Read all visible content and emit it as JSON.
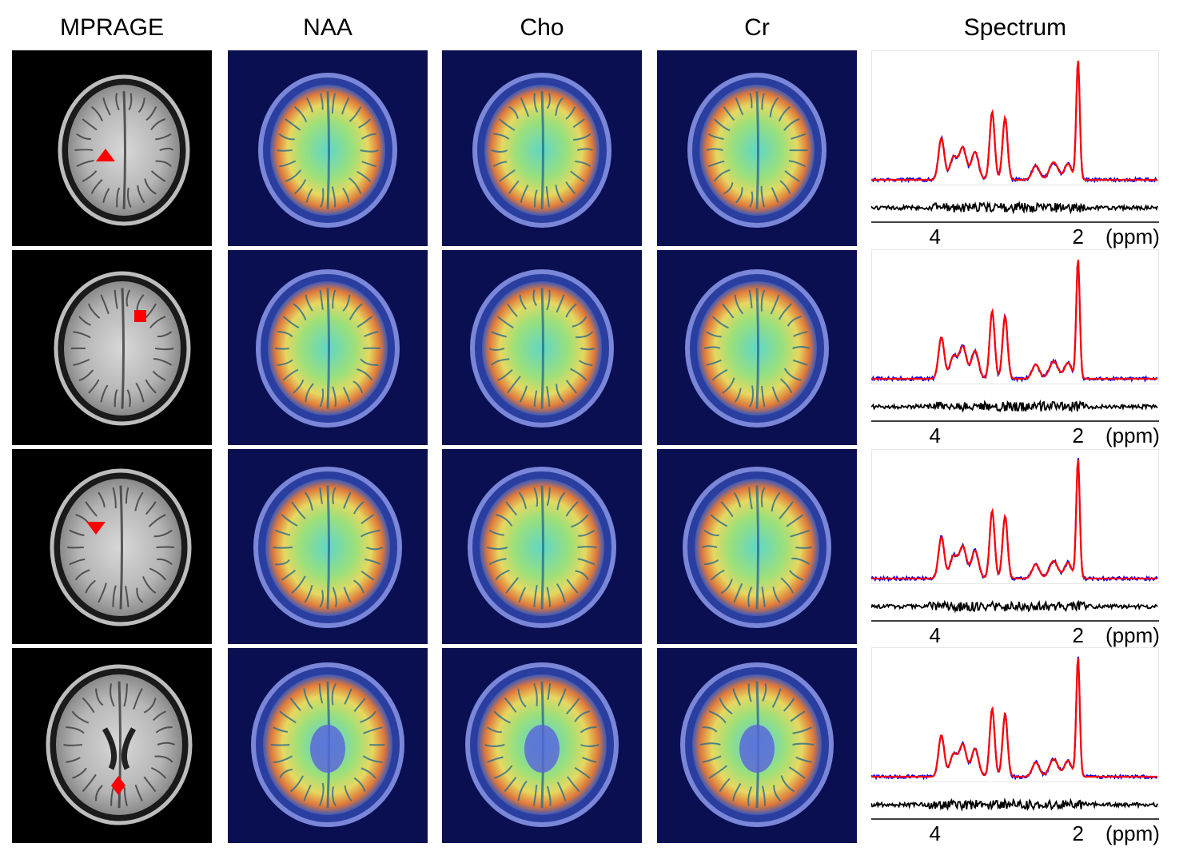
{
  "columns": [
    "MPRAGE",
    "NAA",
    "Cho",
    "Cr",
    "Spectrum"
  ],
  "rows": [
    {
      "marker": "triangle-up",
      "marker_color": "#ff0000"
    },
    {
      "marker": "square",
      "marker_color": "#ff0000"
    },
    {
      "marker": "triangle-down",
      "marker_color": "#ff0000"
    },
    {
      "marker": "diamond",
      "marker_color": "#ff0000"
    }
  ],
  "colors": {
    "fit": "#ff0000",
    "measured": "#0000ff",
    "residual": "#000000",
    "map_background": "#0a0f52"
  },
  "chart_data": [
    {
      "type": "line",
      "title": "",
      "xlabel": "(ppm)",
      "x_ticks": [
        "4",
        "2"
      ],
      "xlim": [
        4.9,
        0.9
      ],
      "series": [
        {
          "name": "measured",
          "color": "#0000ff"
        },
        {
          "name": "fit",
          "color": "#ff0000"
        },
        {
          "name": "residual",
          "color": "#000000"
        }
      ]
    },
    {
      "type": "line",
      "title": "",
      "xlabel": "(ppm)",
      "x_ticks": [
        "4",
        "2"
      ],
      "xlim": [
        4.9,
        0.9
      ],
      "series": [
        {
          "name": "measured",
          "color": "#0000ff"
        },
        {
          "name": "fit",
          "color": "#ff0000"
        },
        {
          "name": "residual",
          "color": "#000000"
        }
      ]
    },
    {
      "type": "line",
      "title": "",
      "xlabel": "(ppm)",
      "x_ticks": [
        "4",
        "2"
      ],
      "xlim": [
        4.9,
        0.9
      ],
      "series": [
        {
          "name": "measured",
          "color": "#0000ff"
        },
        {
          "name": "fit",
          "color": "#ff0000"
        },
        {
          "name": "residual",
          "color": "#000000"
        }
      ]
    },
    {
      "type": "line",
      "title": "",
      "xlabel": "(ppm)",
      "x_ticks": [
        "4",
        "2"
      ],
      "xlim": [
        4.9,
        0.9
      ],
      "series": [
        {
          "name": "measured",
          "color": "#0000ff"
        },
        {
          "name": "fit",
          "color": "#ff0000"
        },
        {
          "name": "residual",
          "color": "#000000"
        }
      ]
    }
  ]
}
